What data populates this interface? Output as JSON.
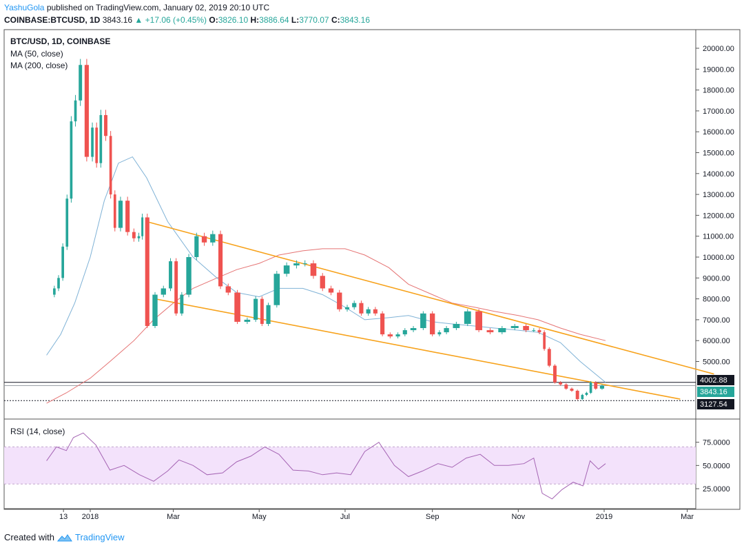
{
  "header": {
    "author": "YashuGola",
    "published_text": "published on TradingView.com, January 02, 2019 20:10 UTC",
    "symbol": "COINBASE:BTCUSD, 1D",
    "price": "3843.16",
    "change": "+17.06 (+0.45%)",
    "o_label": "O:",
    "o_value": "3826.10",
    "h_label": "H:",
    "h_value": "3886.64",
    "l_label": "L:",
    "l_value": "3770.07",
    "c_label": "C:",
    "c_value": "3843.16"
  },
  "legend": {
    "title": "BTC/USD, 1D, COINBASE",
    "ma50": "MA (50, close)",
    "ma200": "MA (200, close)",
    "rsi": "RSI (14, close)"
  },
  "footer": {
    "created_with": "Created with",
    "brand": "TradingView"
  },
  "colors": {
    "up": "#26a69a",
    "down": "#ef5350",
    "ma50": "#7fb2d6",
    "ma200": "#e57373",
    "channel": "#f7a21b",
    "rsi": "#a565b4",
    "rsi_band": "#f3e2fb",
    "tv_blue": "#2196f3"
  },
  "chart_data": {
    "type": "line",
    "x_ticks": [
      "13",
      "2018",
      "Mar",
      "May",
      "Jul",
      "Sep",
      "Nov",
      "2019",
      "Mar"
    ],
    "y_ticks": [
      "20000.00",
      "19000.00",
      "18000.00",
      "17000.00",
      "16000.00",
      "15000.00",
      "14000.00",
      "13000.00",
      "12000.00",
      "11000.00",
      "10000.00",
      "9000.00",
      "8000.00",
      "7000.00",
      "6000.00",
      "5000.00"
    ],
    "ylim": [
      3000,
      20800
    ],
    "price_labels": {
      "resistance": "4002.88",
      "last": "3843.16",
      "support": "3127.54"
    },
    "series": [
      {
        "kind": "close",
        "x": [
          "2017-12-05",
          "2017-12-08",
          "2017-12-11",
          "2017-12-14",
          "2017-12-17",
          "2017-12-20",
          "2017-12-23",
          "2017-12-27",
          "2018-01-01",
          "2018-01-04",
          "2018-01-07",
          "2018-01-10",
          "2018-01-14",
          "2018-01-17",
          "2018-01-20",
          "2018-01-25",
          "2018-01-30",
          "2018-02-03",
          "2018-02-06",
          "2018-02-08",
          "2018-02-13",
          "2018-02-19",
          "2018-02-25",
          "2018-03-01",
          "2018-03-05",
          "2018-03-09",
          "2018-03-15",
          "2018-03-20",
          "2018-03-26",
          "2018-04-01",
          "2018-04-06",
          "2018-04-12",
          "2018-04-19",
          "2018-04-26",
          "2018-05-01",
          "2018-05-05",
          "2018-05-10",
          "2018-05-17",
          "2018-05-24",
          "2018-05-31",
          "2018-06-05",
          "2018-06-12",
          "2018-06-18",
          "2018-06-24",
          "2018-06-30",
          "2018-07-05",
          "2018-07-10",
          "2018-07-15",
          "2018-07-20",
          "2018-07-25",
          "2018-07-30",
          "2018-08-05",
          "2018-08-10",
          "2018-08-15",
          "2018-08-22",
          "2018-08-29",
          "2018-09-04",
          "2018-09-08",
          "2018-09-14",
          "2018-09-22",
          "2018-09-30",
          "2018-10-08",
          "2018-10-16",
          "2018-10-25",
          "2018-11-03",
          "2018-11-10",
          "2018-11-14",
          "2018-11-18",
          "2018-11-21",
          "2018-11-25",
          "2018-11-29",
          "2018-12-03",
          "2018-12-07",
          "2018-12-11",
          "2018-12-15",
          "2018-12-18",
          "2018-12-21",
          "2018-12-24",
          "2018-12-28",
          "2019-01-02"
        ],
        "y": [
          8200,
          8500,
          9000,
          10500,
          12800,
          16500,
          17500,
          19200,
          14800,
          16200,
          14500,
          16800,
          15800,
          13000,
          11400,
          12700,
          11200,
          10900,
          11000,
          11900,
          6700,
          8200,
          8500,
          9800,
          7300,
          8200,
          10000,
          11000,
          10700,
          11100,
          8600,
          8300,
          6900,
          7000,
          8000,
          6800,
          7700,
          9200,
          9600,
          9700,
          9700,
          9100,
          8500,
          8300,
          7500,
          7600,
          7800,
          7300,
          7500,
          7300,
          6300,
          6200,
          6300,
          6500,
          6600,
          7300,
          6300,
          6400,
          6600,
          6800,
          7400,
          6500,
          6400,
          6600,
          6700,
          6500,
          6500,
          6400,
          5600,
          4800,
          4000,
          3900,
          3700,
          3600,
          3200,
          3400,
          3500,
          4000,
          3700,
          3843
        ]
      },
      {
        "name": "MA (50, close)",
        "x": [
          "2017-12-01",
          "2017-12-11",
          "2017-12-21",
          "2018-01-01",
          "2018-01-11",
          "2018-01-21",
          "2018-01-31",
          "2018-02-10",
          "2018-02-25",
          "2018-03-15",
          "2018-04-01",
          "2018-04-15",
          "2018-05-01",
          "2018-05-15",
          "2018-06-01",
          "2018-06-15",
          "2018-07-01",
          "2018-07-15",
          "2018-08-01",
          "2018-08-15",
          "2018-09-01",
          "2018-09-15",
          "2018-10-01",
          "2018-10-15",
          "2018-11-01",
          "2018-11-15",
          "2018-12-01",
          "2018-12-15",
          "2019-01-02"
        ],
        "y": [
          5300,
          6300,
          7800,
          10000,
          12700,
          14500,
          14800,
          13800,
          11700,
          10000,
          9000,
          8300,
          8100,
          8500,
          8500,
          8200,
          7600,
          7000,
          7100,
          7200,
          6900,
          6800,
          6700,
          6600,
          6500,
          6400,
          5900,
          5000,
          4000
        ]
      },
      {
        "name": "MA (200, close)",
        "x": [
          "2017-12-01",
          "2017-12-15",
          "2018-01-01",
          "2018-01-15",
          "2018-02-01",
          "2018-02-15",
          "2018-03-01",
          "2018-03-15",
          "2018-04-01",
          "2018-04-15",
          "2018-05-01",
          "2018-05-15",
          "2018-06-01",
          "2018-06-15",
          "2018-07-01",
          "2018-07-15",
          "2018-08-01",
          "2018-08-15",
          "2018-09-01",
          "2018-09-15",
          "2018-10-01",
          "2018-10-15",
          "2018-11-01",
          "2018-11-15",
          "2018-12-01",
          "2018-12-15",
          "2019-01-02"
        ],
        "y": [
          3000,
          3500,
          4200,
          5000,
          6000,
          7000,
          7800,
          8500,
          9000,
          9400,
          9700,
          10100,
          10300,
          10400,
          10400,
          10100,
          9500,
          8700,
          8200,
          7800,
          7600,
          7400,
          7200,
          7000,
          6600,
          6300,
          6000
        ]
      },
      {
        "name": "RSI (14, close)",
        "x": [
          "2017-12-01",
          "2017-12-08",
          "2017-12-15",
          "2017-12-20",
          "2017-12-27",
          "2018-01-05",
          "2018-01-15",
          "2018-01-25",
          "2018-02-05",
          "2018-02-15",
          "2018-02-25",
          "2018-03-05",
          "2018-03-15",
          "2018-03-25",
          "2018-04-05",
          "2018-04-15",
          "2018-04-25",
          "2018-05-05",
          "2018-05-15",
          "2018-05-25",
          "2018-06-05",
          "2018-06-15",
          "2018-06-25",
          "2018-07-05",
          "2018-07-15",
          "2018-07-25",
          "2018-08-05",
          "2018-08-15",
          "2018-08-25",
          "2018-09-05",
          "2018-09-15",
          "2018-09-25",
          "2018-10-05",
          "2018-10-15",
          "2018-10-25",
          "2018-11-05",
          "2018-11-12",
          "2018-11-18",
          "2018-11-25",
          "2018-12-02",
          "2018-12-10",
          "2018-12-17",
          "2018-12-22",
          "2018-12-28",
          "2019-01-02"
        ],
        "y": [
          55,
          70,
          66,
          80,
          85,
          72,
          45,
          50,
          40,
          33,
          44,
          56,
          50,
          40,
          42,
          54,
          60,
          70,
          62,
          45,
          44,
          40,
          42,
          40,
          65,
          75,
          50,
          38,
          44,
          52,
          48,
          58,
          62,
          50,
          50,
          52,
          58,
          20,
          14,
          24,
          32,
          28,
          55,
          46,
          52
        ]
      }
    ],
    "channel": [
      {
        "x": [
          "2018-02-10",
          "2019-03-20"
        ],
        "y": [
          11700,
          4400
        ]
      },
      {
        "x": [
          "2018-02-16",
          "2019-02-24"
        ],
        "y": [
          8000,
          3200
        ]
      }
    ],
    "levels": [
      {
        "name": "resistance",
        "y": 4002.88,
        "style": "solid"
      },
      {
        "name": "last",
        "y": 3843.16,
        "style": "solid-light"
      },
      {
        "name": "support",
        "y": 3127.54,
        "style": "dotted"
      }
    ],
    "rsi_ticks": [
      "75.0000",
      "50.0000",
      "25.0000"
    ],
    "rsi_band": [
      30,
      70
    ],
    "rsi_ylim": [
      5,
      97
    ]
  }
}
